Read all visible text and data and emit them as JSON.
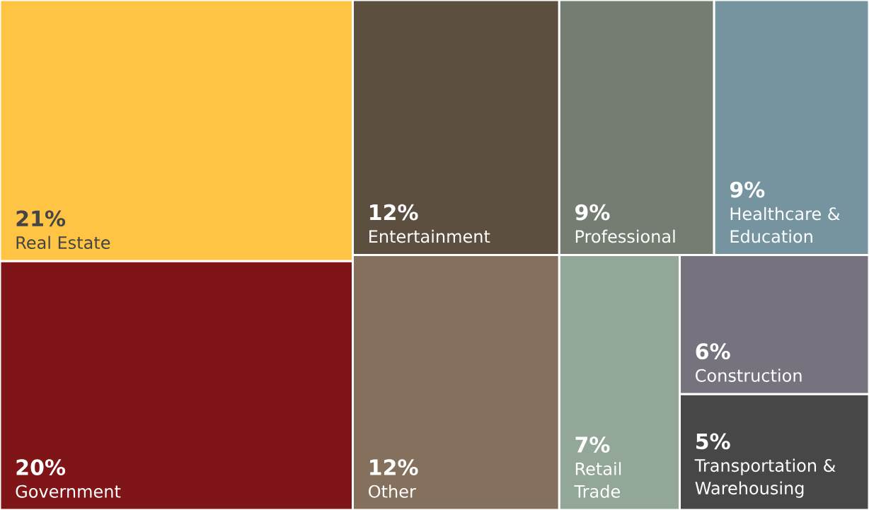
{
  "chart_data": {
    "type": "other",
    "categories": [
      "Real Estate",
      "Government",
      "Entertainment",
      "Professional",
      "Healthcare & Education",
      "Other",
      "Retail Trade",
      "Construction",
      "Transportation & Warehousing"
    ],
    "values": [
      21,
      20,
      12,
      9,
      9,
      12,
      7,
      6,
      5
    ],
    "value_labels": [
      "21%",
      "20%",
      "12%",
      "9%",
      "9%",
      "12%",
      "7%",
      "6%",
      "5%"
    ],
    "colors": [
      "#ffc444",
      "#801517",
      "#5c4f40",
      "#757d72",
      "#7594a0",
      "#84705d",
      "#92a797",
      "#76737e",
      "#474747"
    ]
  }
}
